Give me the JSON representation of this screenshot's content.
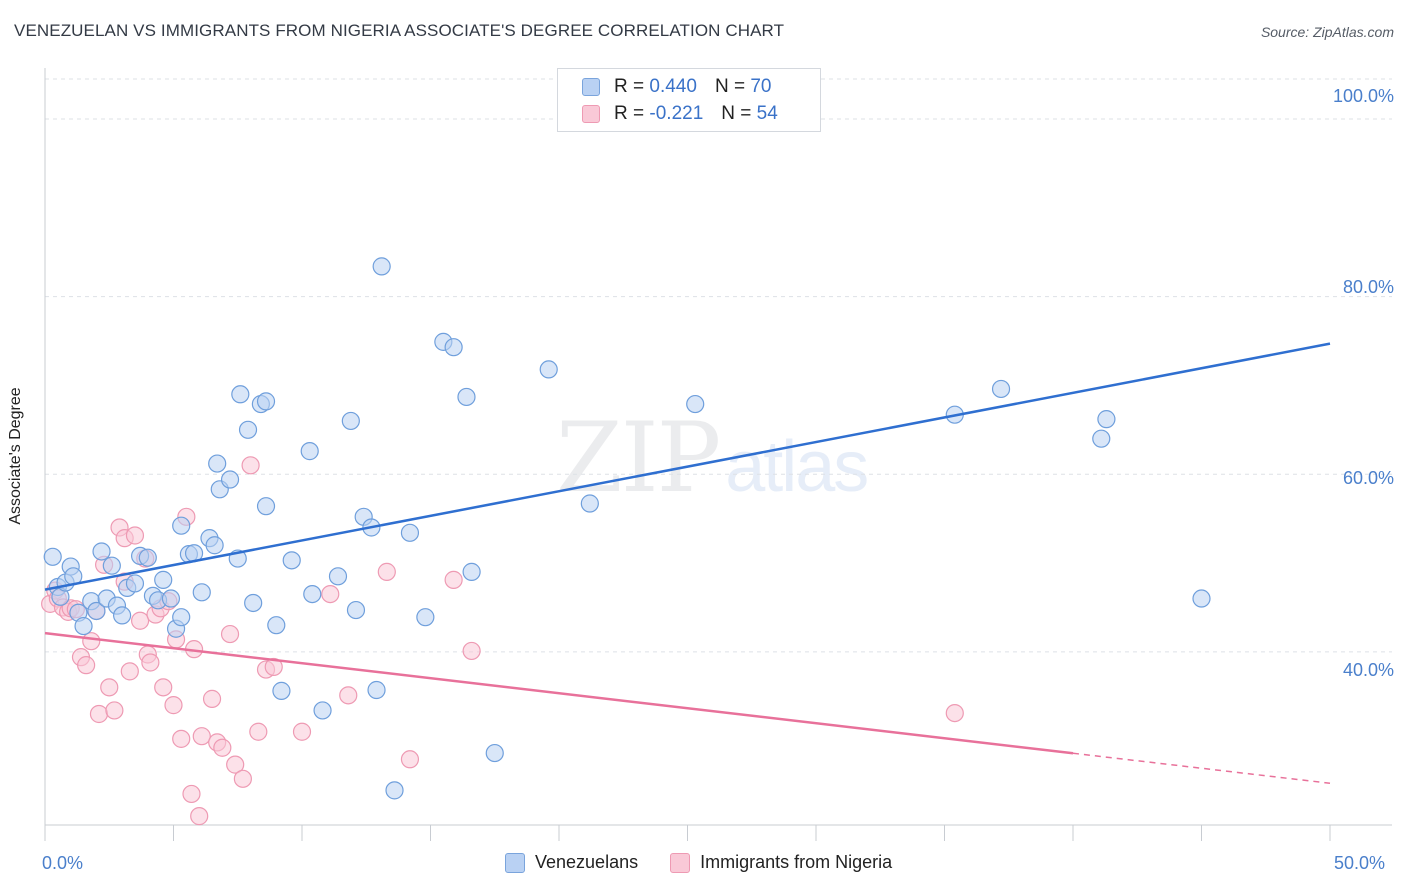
{
  "title": "VENEZUELAN VS IMMIGRANTS FROM NIGERIA ASSOCIATE'S DEGREE CORRELATION CHART",
  "source": "Source: ZipAtlas.com",
  "watermark": {
    "part1": "ZIP",
    "part2": "atlas"
  },
  "legend_top": {
    "rows": [
      {
        "r_label": "R = ",
        "r_value": "0.440",
        "n_label": "N = ",
        "n_value": "70"
      },
      {
        "r_label": "R = ",
        "r_value": "-0.221",
        "n_label": "N = ",
        "n_value": "54"
      }
    ]
  },
  "chart_data": {
    "type": "scatter",
    "title": "VENEZUELAN VS IMMIGRANTS FROM NIGERIA ASSOCIATE'S DEGREE CORRELATION CHART",
    "xlabel": "",
    "ylabel": "Associate's Degree",
    "xlim": [
      0,
      50
    ],
    "ylim": [
      20.5,
      104.5
    ],
    "x_tick_labels": [
      "0.0%",
      "50.0%"
    ],
    "y_ticks": [
      {
        "value": 100,
        "label": "100.0%"
      },
      {
        "value": 80,
        "label": "80.0%"
      },
      {
        "value": 60,
        "label": "60.0%"
      },
      {
        "value": 40,
        "label": "40.0%"
      }
    ],
    "grid": true,
    "legend": "bottom-center",
    "colors": {
      "venezuelans_fill": "#b9d1f3",
      "venezuelans_stroke": "#6f9fdc",
      "venezuelans_line": "#2f6fd0",
      "nigeria_fill": "#f9c9d7",
      "nigeria_stroke": "#ee9ab3",
      "nigeria_line": "#e8719a",
      "grid": "#dde1e6",
      "axis": "#c8ccd2"
    },
    "series": [
      {
        "name": "Venezuelans",
        "r": 0.44,
        "n": 70,
        "trend": {
          "x0": 0,
          "y0": 47.0,
          "x1": 50,
          "y1": 74.7,
          "solid_until": 50
        },
        "points": [
          [
            0.3,
            50.7
          ],
          [
            0.5,
            47.3
          ],
          [
            0.6,
            46.2
          ],
          [
            0.8,
            47.8
          ],
          [
            1.0,
            49.6
          ],
          [
            1.1,
            48.5
          ],
          [
            1.3,
            44.4
          ],
          [
            1.5,
            42.9
          ],
          [
            1.8,
            45.7
          ],
          [
            2.0,
            44.6
          ],
          [
            2.2,
            51.3
          ],
          [
            2.4,
            46.0
          ],
          [
            2.6,
            49.7
          ],
          [
            2.8,
            45.2
          ],
          [
            3.0,
            44.1
          ],
          [
            3.2,
            47.2
          ],
          [
            3.5,
            47.7
          ],
          [
            3.7,
            50.8
          ],
          [
            4.0,
            50.6
          ],
          [
            4.2,
            46.3
          ],
          [
            4.4,
            45.8
          ],
          [
            4.6,
            48.1
          ],
          [
            4.9,
            46.0
          ],
          [
            5.1,
            42.6
          ],
          [
            5.3,
            43.9
          ],
          [
            5.3,
            54.2
          ],
          [
            5.6,
            51.0
          ],
          [
            5.8,
            51.1
          ],
          [
            6.1,
            46.7
          ],
          [
            6.4,
            52.8
          ],
          [
            6.6,
            52.0
          ],
          [
            6.7,
            61.2
          ],
          [
            6.8,
            58.3
          ],
          [
            7.2,
            59.4
          ],
          [
            7.5,
            50.5
          ],
          [
            7.6,
            69.0
          ],
          [
            7.9,
            65.0
          ],
          [
            8.1,
            45.5
          ],
          [
            8.4,
            67.9
          ],
          [
            8.6,
            68.2
          ],
          [
            8.6,
            56.4
          ],
          [
            9.0,
            43.0
          ],
          [
            9.2,
            35.6
          ],
          [
            9.6,
            50.3
          ],
          [
            10.3,
            62.6
          ],
          [
            10.4,
            46.5
          ],
          [
            10.8,
            33.4
          ],
          [
            11.4,
            48.5
          ],
          [
            11.9,
            66.0
          ],
          [
            12.1,
            44.7
          ],
          [
            12.4,
            55.2
          ],
          [
            12.7,
            54.0
          ],
          [
            12.9,
            35.7
          ],
          [
            13.1,
            83.4
          ],
          [
            13.6,
            24.4
          ],
          [
            14.2,
            53.4
          ],
          [
            14.8,
            43.9
          ],
          [
            15.5,
            74.9
          ],
          [
            15.9,
            74.3
          ],
          [
            16.4,
            68.7
          ],
          [
            16.6,
            49.0
          ],
          [
            17.5,
            28.6
          ],
          [
            19.6,
            71.8
          ],
          [
            21.2,
            56.7
          ],
          [
            25.3,
            67.9
          ],
          [
            35.4,
            66.7
          ],
          [
            37.2,
            69.6
          ],
          [
            41.1,
            64.0
          ],
          [
            41.3,
            66.2
          ],
          [
            45.0,
            46.0
          ]
        ]
      },
      {
        "name": "Immigrants from Nigeria",
        "r": -0.221,
        "n": 54,
        "trend": {
          "x0": 0,
          "y0": 42.1,
          "x1": 50,
          "y1": 25.2,
          "solid_until": 40.0
        },
        "points": [
          [
            0.2,
            45.4
          ],
          [
            0.4,
            46.9
          ],
          [
            0.5,
            46.0
          ],
          [
            0.7,
            45.0
          ],
          [
            0.9,
            44.5
          ],
          [
            1.0,
            44.9
          ],
          [
            1.2,
            44.8
          ],
          [
            1.4,
            39.4
          ],
          [
            1.6,
            38.5
          ],
          [
            1.8,
            41.2
          ],
          [
            2.0,
            44.6
          ],
          [
            2.1,
            33.0
          ],
          [
            2.3,
            49.8
          ],
          [
            2.5,
            36.0
          ],
          [
            2.7,
            33.4
          ],
          [
            2.9,
            54.0
          ],
          [
            3.1,
            47.9
          ],
          [
            3.1,
            52.8
          ],
          [
            3.3,
            37.8
          ],
          [
            3.5,
            53.1
          ],
          [
            3.7,
            43.5
          ],
          [
            3.9,
            50.5
          ],
          [
            4.0,
            39.7
          ],
          [
            4.1,
            38.8
          ],
          [
            4.3,
            44.2
          ],
          [
            4.5,
            44.9
          ],
          [
            4.6,
            36.0
          ],
          [
            4.8,
            45.7
          ],
          [
            5.0,
            34.0
          ],
          [
            5.1,
            41.4
          ],
          [
            5.3,
            30.2
          ],
          [
            5.5,
            55.2
          ],
          [
            5.7,
            24.0
          ],
          [
            5.8,
            40.3
          ],
          [
            6.0,
            21.5
          ],
          [
            6.1,
            30.5
          ],
          [
            6.5,
            34.7
          ],
          [
            6.7,
            29.8
          ],
          [
            6.9,
            29.2
          ],
          [
            7.2,
            42.0
          ],
          [
            7.4,
            27.3
          ],
          [
            7.7,
            25.7
          ],
          [
            8.0,
            61.0
          ],
          [
            8.3,
            31.0
          ],
          [
            8.6,
            38.0
          ],
          [
            8.9,
            38.3
          ],
          [
            10.0,
            31.0
          ],
          [
            11.1,
            46.5
          ],
          [
            11.8,
            35.1
          ],
          [
            13.3,
            49.0
          ],
          [
            14.2,
            27.9
          ],
          [
            15.9,
            48.1
          ],
          [
            16.6,
            40.1
          ],
          [
            35.4,
            33.1
          ]
        ]
      }
    ]
  }
}
